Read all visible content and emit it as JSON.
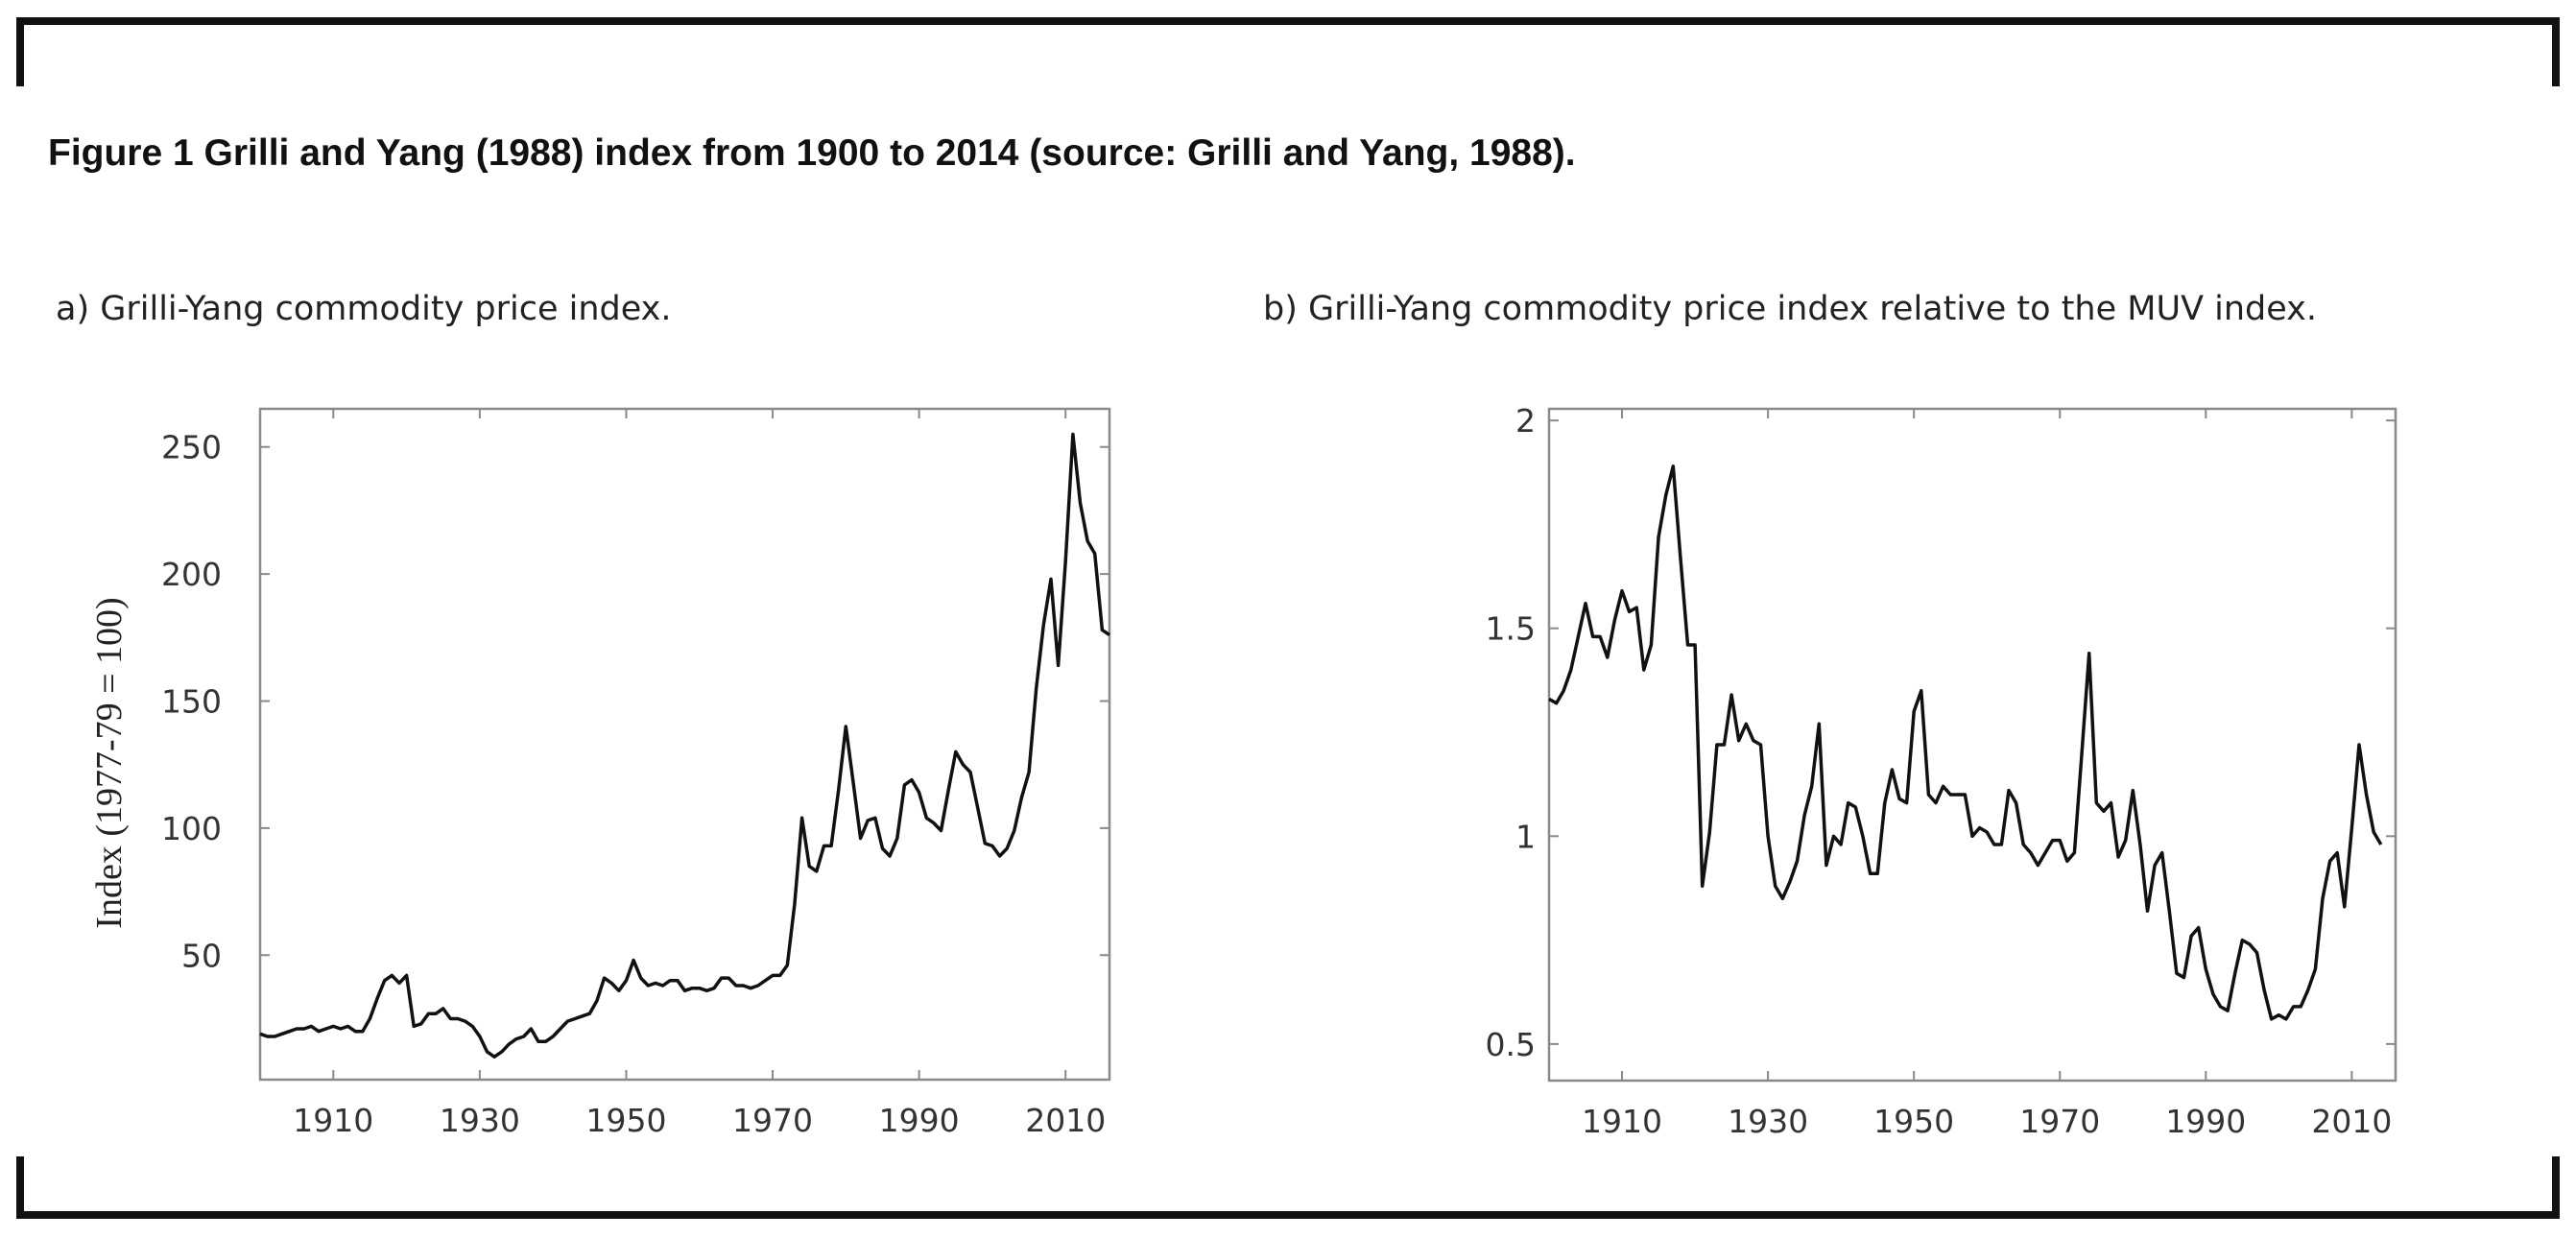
{
  "figure_title": "Figure 1 Grilli and Yang (1988) index from 1900 to 2014 (source: Grilli and Yang, 1988).",
  "chart_data": [
    {
      "type": "line",
      "title": "a) Grilli-Yang commodity price index.",
      "xlabel": "",
      "ylabel": "Index (1977-79 = 100)",
      "xlim": [
        1900,
        2016
      ],
      "ylim": [
        1,
        265
      ],
      "xticks": [
        "1910",
        "1930",
        "1950",
        "1970",
        "1990",
        "2010"
      ],
      "yticks": [
        "50",
        "100",
        "150",
        "200",
        "250"
      ],
      "grid": false,
      "x_start": 1900,
      "values": [
        19,
        18,
        18,
        19,
        20,
        21,
        21,
        22,
        20,
        21,
        22,
        21,
        22,
        20,
        20,
        25,
        33,
        40,
        42,
        39,
        42,
        22,
        23,
        27,
        27,
        29,
        25,
        25,
        24,
        22,
        18,
        12,
        10,
        12,
        15,
        17,
        18,
        21,
        16,
        16,
        18,
        21,
        24,
        25,
        26,
        27,
        32,
        41,
        39,
        36,
        40,
        48,
        41,
        38,
        39,
        38,
        40,
        40,
        36,
        37,
        37,
        36,
        37,
        41,
        41,
        38,
        38,
        37,
        38,
        40,
        42,
        42,
        46,
        70,
        104,
        85,
        83,
        93,
        93,
        115,
        140,
        118,
        96,
        103,
        104,
        92,
        89,
        96,
        117,
        119,
        114,
        104,
        102,
        99,
        115,
        130,
        125,
        122,
        108,
        94,
        93,
        89,
        92,
        99,
        112,
        122,
        155,
        180,
        198,
        164,
        205,
        255,
        228,
        213,
        208,
        178,
        176
      ],
      "line_color": "#111111"
    },
    {
      "type": "line",
      "title": "b) Grilli-Yang commodity price index relative to the MUV index.",
      "xlabel": "",
      "ylabel": "",
      "xlim": [
        1900,
        2016
      ],
      "ylim": [
        0.412,
        2.028
      ],
      "xticks": [
        "1910",
        "1930",
        "1950",
        "1970",
        "1990",
        "2010"
      ],
      "yticks": [
        "0.5",
        "1",
        "1.5",
        "2"
      ],
      "grid": false,
      "x_start": 1900,
      "values": [
        1.33,
        1.32,
        1.35,
        1.4,
        1.48,
        1.56,
        1.48,
        1.48,
        1.43,
        1.52,
        1.59,
        1.54,
        1.55,
        1.4,
        1.46,
        1.72,
        1.82,
        1.89,
        1.67,
        1.46,
        1.46,
        0.88,
        1.01,
        1.22,
        1.22,
        1.34,
        1.23,
        1.27,
        1.23,
        1.22,
        1.0,
        0.88,
        0.85,
        0.89,
        0.94,
        1.05,
        1.12,
        1.27,
        0.93,
        1.0,
        0.98,
        1.08,
        1.07,
        1.0,
        0.91,
        0.91,
        1.08,
        1.16,
        1.09,
        1.08,
        1.3,
        1.35,
        1.1,
        1.08,
        1.12,
        1.1,
        1.1,
        1.1,
        1.0,
        1.02,
        1.01,
        0.98,
        0.98,
        1.11,
        1.08,
        0.98,
        0.96,
        0.93,
        0.96,
        0.99,
        0.99,
        0.94,
        0.96,
        1.2,
        1.44,
        1.08,
        1.06,
        1.08,
        0.95,
        0.99,
        1.11,
        0.98,
        0.82,
        0.93,
        0.96,
        0.82,
        0.67,
        0.66,
        0.76,
        0.78,
        0.68,
        0.62,
        0.59,
        0.58,
        0.67,
        0.75,
        0.74,
        0.72,
        0.63,
        0.56,
        0.57,
        0.56,
        0.59,
        0.59,
        0.63,
        0.68,
        0.85,
        0.94,
        0.96,
        0.83,
        1.02,
        1.22,
        1.1,
        1.01,
        0.98
      ],
      "line_color": "#111111"
    }
  ]
}
